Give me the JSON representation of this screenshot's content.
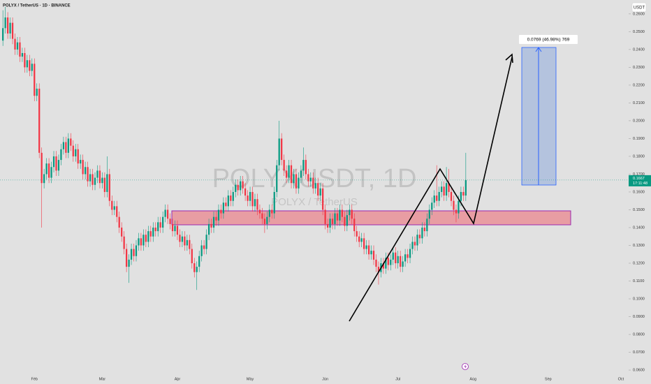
{
  "chart_data": {
    "type": "candlestick",
    "title": "POLYX / TetherUS · 1D · BINANCE",
    "watermark": "POLYXUSDT, 1D",
    "watermark_subtitle": "POLYX / TetherUS",
    "currency": "USDT",
    "countdown": "17:11:48",
    "annotation": "0.0769 (46.98%) 769",
    "up_color": "#089981",
    "down_color": "#f23645",
    "open": [
      0.245,
      0.252,
      0.258,
      0.249,
      0.255,
      0.246,
      0.24,
      0.244,
      0.236,
      0.238,
      0.23,
      0.234,
      0.228,
      0.232,
      0.214,
      0.218,
      0.182,
      0.165,
      0.17,
      0.176,
      0.168,
      0.174,
      0.18,
      0.172,
      0.178,
      0.184,
      0.188,
      0.182,
      0.19,
      0.186,
      0.18,
      0.184,
      0.176,
      0.178,
      0.17,
      0.174,
      0.166,
      0.17,
      0.164,
      0.168,
      0.172,
      0.165,
      0.168,
      0.16,
      0.17,
      0.155,
      0.15,
      0.152,
      0.146,
      0.14,
      0.135,
      0.128,
      0.118,
      0.122,
      0.128,
      0.124,
      0.13,
      0.134,
      0.13,
      0.136,
      0.132,
      0.138,
      0.135,
      0.14,
      0.138,
      0.143,
      0.14,
      0.146,
      0.15,
      0.145,
      0.142,
      0.138,
      0.141,
      0.136,
      0.132,
      0.135,
      0.13,
      0.133,
      0.128,
      0.12,
      0.115,
      0.118,
      0.124,
      0.13,
      0.128,
      0.136,
      0.142,
      0.14,
      0.146,
      0.144,
      0.15,
      0.148,
      0.154,
      0.152,
      0.158,
      0.155,
      0.16,
      0.164,
      0.161,
      0.166,
      0.162,
      0.158,
      0.155,
      0.16,
      0.152,
      0.156,
      0.15,
      0.148,
      0.145,
      0.142,
      0.146,
      0.15,
      0.148,
      0.16,
      0.175,
      0.19,
      0.178,
      0.172,
      0.168,
      0.175,
      0.165,
      0.17,
      0.162,
      0.168,
      0.172,
      0.178,
      0.17,
      0.166,
      0.168,
      0.162,
      0.165,
      0.158,
      0.162,
      0.15,
      0.142,
      0.14,
      0.145,
      0.142,
      0.148,
      0.144,
      0.15,
      0.146,
      0.141,
      0.147,
      0.15,
      0.145,
      0.138,
      0.135,
      0.132,
      0.134,
      0.128,
      0.13,
      0.125,
      0.127,
      0.122,
      0.118,
      0.115,
      0.12,
      0.117,
      0.123,
      0.119,
      0.122,
      0.126,
      0.12,
      0.124,
      0.118,
      0.121,
      0.125,
      0.123,
      0.128,
      0.132,
      0.13,
      0.136,
      0.134,
      0.14,
      0.138,
      0.145,
      0.15,
      0.154,
      0.158,
      0.155,
      0.16,
      0.163,
      0.158,
      0.165,
      0.16,
      0.155,
      0.15,
      0.148,
      0.155,
      0.16,
      0.158
    ],
    "high": [
      0.262,
      0.264,
      0.261,
      0.258,
      0.258,
      0.249,
      0.247,
      0.247,
      0.241,
      0.241,
      0.237,
      0.237,
      0.235,
      0.235,
      0.221,
      0.221,
      0.185,
      0.173,
      0.179,
      0.179,
      0.177,
      0.183,
      0.183,
      0.181,
      0.187,
      0.191,
      0.191,
      0.193,
      0.193,
      0.189,
      0.187,
      0.187,
      0.181,
      0.181,
      0.177,
      0.177,
      0.173,
      0.173,
      0.171,
      0.175,
      0.175,
      0.171,
      0.171,
      0.18,
      0.173,
      0.158,
      0.155,
      0.155,
      0.149,
      0.143,
      0.138,
      0.131,
      0.125,
      0.131,
      0.131,
      0.133,
      0.137,
      0.137,
      0.139,
      0.139,
      0.141,
      0.141,
      0.143,
      0.143,
      0.146,
      0.146,
      0.149,
      0.153,
      0.153,
      0.148,
      0.145,
      0.144,
      0.144,
      0.139,
      0.138,
      0.138,
      0.136,
      0.136,
      0.131,
      0.123,
      0.121,
      0.127,
      0.133,
      0.133,
      0.139,
      0.145,
      0.145,
      0.149,
      0.149,
      0.153,
      0.153,
      0.157,
      0.157,
      0.161,
      0.161,
      0.163,
      0.167,
      0.167,
      0.169,
      0.169,
      0.165,
      0.161,
      0.163,
      0.163,
      0.159,
      0.159,
      0.153,
      0.151,
      0.148,
      0.149,
      0.153,
      0.153,
      0.163,
      0.178,
      0.2,
      0.193,
      0.181,
      0.175,
      0.178,
      0.178,
      0.173,
      0.173,
      0.171,
      0.175,
      0.185,
      0.181,
      0.173,
      0.171,
      0.171,
      0.168,
      0.168,
      0.165,
      0.165,
      0.153,
      0.145,
      0.148,
      0.148,
      0.151,
      0.151,
      0.153,
      0.153,
      0.149,
      0.15,
      0.153,
      0.153,
      0.148,
      0.141,
      0.138,
      0.137,
      0.137,
      0.133,
      0.133,
      0.13,
      0.13,
      0.125,
      0.121,
      0.123,
      0.123,
      0.126,
      0.126,
      0.125,
      0.129,
      0.129,
      0.127,
      0.127,
      0.124,
      0.128,
      0.128,
      0.131,
      0.135,
      0.135,
      0.139,
      0.139,
      0.143,
      0.143,
      0.148,
      0.153,
      0.157,
      0.161,
      0.175,
      0.163,
      0.166,
      0.166,
      0.174,
      0.173,
      0.163,
      0.158,
      0.153,
      0.158,
      0.163,
      0.163,
      0.182
    ],
    "low": [
      0.242,
      0.249,
      0.246,
      0.246,
      0.243,
      0.237,
      0.237,
      0.233,
      0.233,
      0.227,
      0.227,
      0.225,
      0.225,
      0.211,
      0.211,
      0.179,
      0.14,
      0.162,
      0.167,
      0.165,
      0.165,
      0.171,
      0.169,
      0.169,
      0.175,
      0.181,
      0.179,
      0.179,
      0.183,
      0.177,
      0.177,
      0.173,
      0.173,
      0.167,
      0.167,
      0.163,
      0.163,
      0.161,
      0.161,
      0.165,
      0.162,
      0.162,
      0.157,
      0.157,
      0.152,
      0.147,
      0.147,
      0.143,
      0.137,
      0.132,
      0.125,
      0.115,
      0.109,
      0.119,
      0.121,
      0.121,
      0.127,
      0.127,
      0.127,
      0.129,
      0.129,
      0.132,
      0.132,
      0.135,
      0.135,
      0.137,
      0.137,
      0.143,
      0.142,
      0.139,
      0.135,
      0.135,
      0.133,
      0.129,
      0.129,
      0.127,
      0.127,
      0.125,
      0.117,
      0.112,
      0.105,
      0.115,
      0.121,
      0.125,
      0.125,
      0.133,
      0.137,
      0.137,
      0.141,
      0.141,
      0.145,
      0.145,
      0.149,
      0.149,
      0.152,
      0.152,
      0.157,
      0.158,
      0.158,
      0.159,
      0.155,
      0.152,
      0.152,
      0.149,
      0.149,
      0.147,
      0.145,
      0.142,
      0.137,
      0.139,
      0.143,
      0.145,
      0.145,
      0.157,
      0.172,
      0.175,
      0.169,
      0.165,
      0.165,
      0.162,
      0.162,
      0.159,
      0.159,
      0.165,
      0.169,
      0.167,
      0.163,
      0.163,
      0.159,
      0.159,
      0.155,
      0.155,
      0.147,
      0.139,
      0.137,
      0.137,
      0.139,
      0.139,
      0.141,
      0.141,
      0.143,
      0.138,
      0.138,
      0.144,
      0.142,
      0.135,
      0.132,
      0.129,
      0.129,
      0.125,
      0.125,
      0.122,
      0.122,
      0.119,
      0.115,
      0.108,
      0.112,
      0.114,
      0.114,
      0.116,
      0.116,
      0.119,
      0.117,
      0.117,
      0.115,
      0.115,
      0.118,
      0.12,
      0.12,
      0.125,
      0.127,
      0.127,
      0.131,
      0.131,
      0.135,
      0.135,
      0.142,
      0.147,
      0.151,
      0.152,
      0.152,
      0.157,
      0.155,
      0.155,
      0.157,
      0.152,
      0.147,
      0.143,
      0.145,
      0.152,
      0.155,
      0.155
    ],
    "close": [
      0.252,
      0.258,
      0.249,
      0.255,
      0.246,
      0.24,
      0.244,
      0.236,
      0.238,
      0.23,
      0.234,
      0.228,
      0.232,
      0.214,
      0.218,
      0.182,
      0.165,
      0.17,
      0.176,
      0.168,
      0.174,
      0.18,
      0.172,
      0.178,
      0.184,
      0.188,
      0.182,
      0.19,
      0.186,
      0.18,
      0.184,
      0.176,
      0.178,
      0.17,
      0.174,
      0.166,
      0.17,
      0.164,
      0.168,
      0.172,
      0.165,
      0.168,
      0.16,
      0.17,
      0.155,
      0.15,
      0.152,
      0.146,
      0.14,
      0.135,
      0.128,
      0.118,
      0.122,
      0.128,
      0.124,
      0.13,
      0.134,
      0.13,
      0.136,
      0.132,
      0.138,
      0.135,
      0.14,
      0.138,
      0.143,
      0.14,
      0.146,
      0.15,
      0.145,
      0.142,
      0.138,
      0.141,
      0.136,
      0.132,
      0.135,
      0.13,
      0.133,
      0.128,
      0.12,
      0.115,
      0.118,
      0.124,
      0.13,
      0.128,
      0.136,
      0.142,
      0.14,
      0.146,
      0.144,
      0.15,
      0.148,
      0.154,
      0.152,
      0.158,
      0.155,
      0.16,
      0.164,
      0.161,
      0.166,
      0.162,
      0.158,
      0.155,
      0.16,
      0.152,
      0.156,
      0.15,
      0.148,
      0.145,
      0.142,
      0.146,
      0.15,
      0.148,
      0.16,
      0.175,
      0.19,
      0.178,
      0.172,
      0.168,
      0.175,
      0.165,
      0.17,
      0.162,
      0.168,
      0.172,
      0.178,
      0.17,
      0.166,
      0.168,
      0.162,
      0.165,
      0.158,
      0.162,
      0.15,
      0.142,
      0.14,
      0.145,
      0.142,
      0.148,
      0.144,
      0.15,
      0.146,
      0.141,
      0.147,
      0.15,
      0.145,
      0.138,
      0.135,
      0.132,
      0.134,
      0.128,
      0.13,
      0.125,
      0.127,
      0.122,
      0.118,
      0.115,
      0.12,
      0.117,
      0.123,
      0.119,
      0.122,
      0.126,
      0.12,
      0.124,
      0.118,
      0.121,
      0.125,
      0.123,
      0.128,
      0.132,
      0.13,
      0.136,
      0.134,
      0.14,
      0.138,
      0.145,
      0.15,
      0.154,
      0.158,
      0.155,
      0.16,
      0.163,
      0.158,
      0.165,
      0.16,
      0.155,
      0.15,
      0.148,
      0.155,
      0.16,
      0.158,
      0.1667
    ],
    "xlim": [
      -1.2,
      258.2
    ],
    "xticks": [
      {
        "value": 13,
        "label": "Feb"
      },
      {
        "value": 41,
        "label": "Mar"
      },
      {
        "value": 72,
        "label": "Apr"
      },
      {
        "value": 102,
        "label": "May"
      },
      {
        "value": 133,
        "label": "Jun"
      },
      {
        "value": 163,
        "label": "Jul"
      },
      {
        "value": 194,
        "label": "Aug"
      },
      {
        "value": 225,
        "label": "Sep"
      },
      {
        "value": 255,
        "label": "Oct"
      }
    ],
    "ylim": [
      0.0561,
      0.2678
    ],
    "yticks": [
      {
        "value": 0.06,
        "label": "0.0600"
      },
      {
        "value": 0.07,
        "label": "0.0700"
      },
      {
        "value": 0.08,
        "label": "0.0800"
      },
      {
        "value": 0.09,
        "label": "0.0900"
      },
      {
        "value": 0.1,
        "label": "0.1000"
      },
      {
        "value": 0.11,
        "label": "0.1100"
      },
      {
        "value": 0.12,
        "label": "0.1200"
      },
      {
        "value": 0.13,
        "label": "0.1300"
      },
      {
        "value": 0.14,
        "label": "0.1400"
      },
      {
        "value": 0.15,
        "label": "0.1500"
      },
      {
        "value": 0.16,
        "label": "0.1600"
      },
      {
        "value": 0.17,
        "label": "0.1700"
      },
      {
        "value": 0.18,
        "label": "0.1800"
      },
      {
        "value": 0.19,
        "label": "0.1900"
      },
      {
        "value": 0.2,
        "label": "0.2000"
      },
      {
        "value": 0.21,
        "label": "0.2100"
      },
      {
        "value": 0.22,
        "label": "0.2200"
      },
      {
        "value": 0.23,
        "label": "0.2300"
      },
      {
        "value": 0.24,
        "label": "0.2400"
      },
      {
        "value": 0.25,
        "label": "0.2500"
      },
      {
        "value": 0.26,
        "label": "0.2600"
      }
    ],
    "grid": false
  }
}
